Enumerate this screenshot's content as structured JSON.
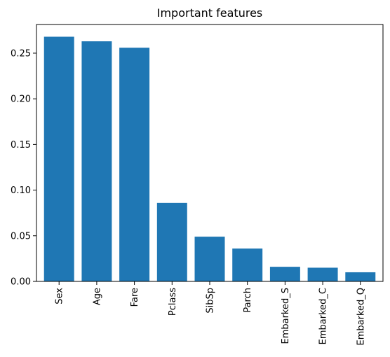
{
  "chart_data": {
    "type": "bar",
    "title": "Important features",
    "xlabel": "",
    "ylabel": "",
    "categories": [
      "Sex",
      "Age",
      "Fare",
      "Pclass",
      "SibSp",
      "Parch",
      "Embarked_S",
      "Embarked_C",
      "Embarked_Q"
    ],
    "values": [
      0.268,
      0.263,
      0.256,
      0.086,
      0.049,
      0.036,
      0.016,
      0.015,
      0.01
    ],
    "ylim": [
      0,
      0.2814
    ],
    "yticks": [
      "0.00",
      "0.05",
      "0.10",
      "0.15",
      "0.20",
      "0.25"
    ],
    "bar_color": "#1f77b4",
    "grid": false,
    "x_tick_rotation": "vertical"
  }
}
